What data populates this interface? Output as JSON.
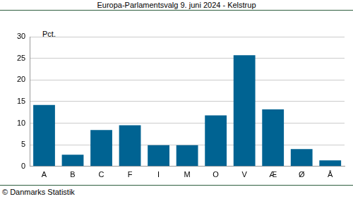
{
  "chart_data": {
    "type": "bar",
    "title": "Europa-Parlamentsvalg 9. juni 2024 - Kelstrup",
    "y_label": "Pct.",
    "source": "© Danmarks Statistik",
    "categories": [
      "A",
      "B",
      "C",
      "F",
      "I",
      "M",
      "O",
      "V",
      "Æ",
      "Ø",
      "Å"
    ],
    "values": [
      14.2,
      2.7,
      8.4,
      9.5,
      4.9,
      4.9,
      11.8,
      25.7,
      13.2,
      4.0,
      1.4
    ],
    "color": "#006392",
    "ylim": [
      0,
      30
    ],
    "yticks": [
      0,
      5,
      10,
      15,
      20,
      25,
      30
    ],
    "grid": true
  }
}
